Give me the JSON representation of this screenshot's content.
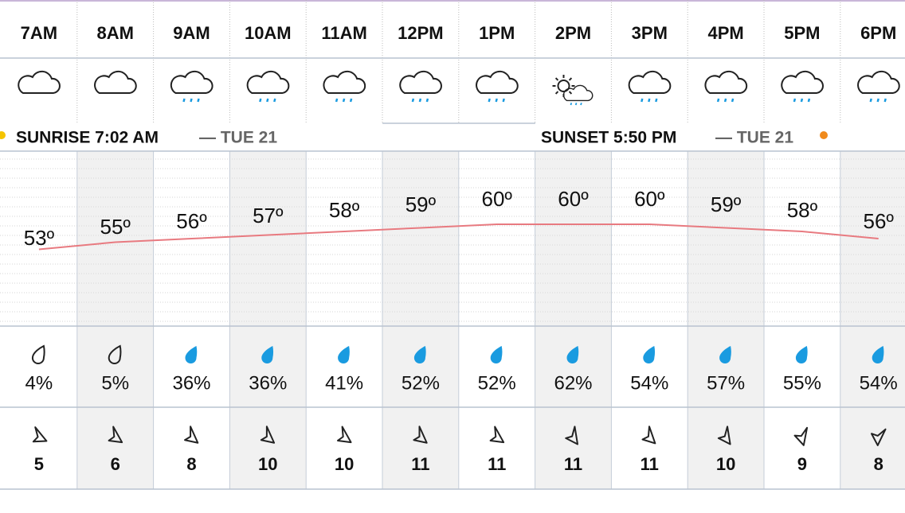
{
  "hours": [
    "7AM",
    "8AM",
    "9AM",
    "10AM",
    "11AM",
    "12PM",
    "1PM",
    "2PM",
    "3PM",
    "4PM",
    "5PM",
    "6PM"
  ],
  "sunrise": {
    "text": "SUNRISE 7:02 AM",
    "day": "— TUE 21"
  },
  "sunset": {
    "text": "SUNSET 5:50 PM",
    "day": "— TUE 21"
  },
  "temperatures": [
    {
      "value": 53,
      "label": "53º"
    },
    {
      "value": 55,
      "label": "55º"
    },
    {
      "value": 56,
      "label": "56º"
    },
    {
      "value": 57,
      "label": "57º"
    },
    {
      "value": 58,
      "label": "58º"
    },
    {
      "value": 59,
      "label": "59º"
    },
    {
      "value": 60,
      "label": "60º"
    },
    {
      "value": 60,
      "label": "60º"
    },
    {
      "value": 60,
      "label": "60º"
    },
    {
      "value": 59,
      "label": "59º"
    },
    {
      "value": 58,
      "label": "58º"
    },
    {
      "value": 56,
      "label": "56º"
    }
  ],
  "precipitation": [
    "4%",
    "5%",
    "36%",
    "36%",
    "41%",
    "52%",
    "52%",
    "62%",
    "54%",
    "57%",
    "55%",
    "54%"
  ],
  "wind_speeds": [
    5,
    6,
    8,
    10,
    10,
    11,
    11,
    11,
    11,
    10,
    9,
    8
  ]
}
